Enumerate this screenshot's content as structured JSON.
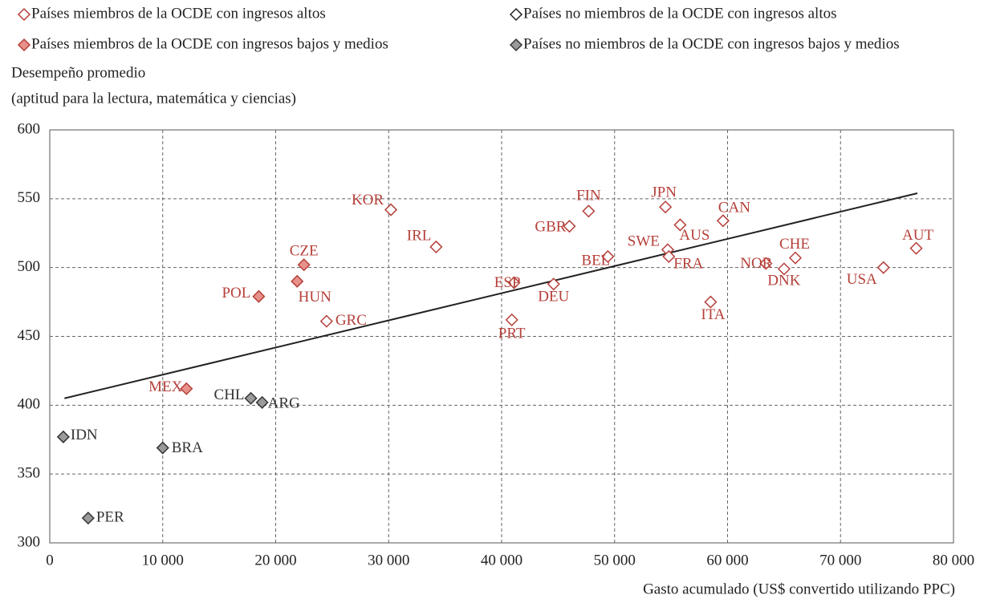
{
  "chart_data": {
    "type": "scatter",
    "y_axis_title": [
      "Desempeño promedio",
      "(aptitud para la lectura, matemática y ciencias)"
    ],
    "x_axis_title": "Gasto acumulado (US$ convertido utilizando PPC)",
    "xlim": [
      0,
      80000
    ],
    "xticks": [
      0,
      {
        "value": 10000,
        "label": "10 000"
      },
      {
        "value": 20000,
        "label": "20 000"
      },
      {
        "value": 30000,
        "label": "30 000"
      },
      {
        "value": 40000,
        "label": "40 000"
      },
      {
        "value": 50000,
        "label": "50 000"
      },
      {
        "value": 60000,
        "label": "60 000"
      },
      {
        "value": 70000,
        "label": "70 000"
      },
      {
        "value": 80000,
        "label": "80 000"
      }
    ],
    "ylim": [
      300,
      600
    ],
    "yticks": [
      300,
      350,
      400,
      450,
      500,
      550,
      600
    ],
    "grid": true,
    "series": [
      {
        "name": "Países miembros de la OCDE con ingresos altos",
        "color": "#b5403a",
        "marker": "hollow",
        "labels": [
          "KOR",
          "IRL",
          "FIN",
          "GBR",
          "JPN",
          "AUS",
          "CAN",
          "SWE",
          "FRA",
          "BEL",
          "ESP",
          "DEU",
          "PRT",
          "ITA",
          "NOR",
          "DNK",
          "CHE",
          "USA",
          "AUT",
          "GRC"
        ],
        "x": [
          30200,
          34200,
          47700,
          46000,
          54500,
          55800,
          59600,
          54700,
          54800,
          49400,
          41100,
          44600,
          40900,
          58500,
          63400,
          65000,
          66000,
          73800,
          76700,
          24500
        ],
        "values": [
          542,
          515,
          541,
          530,
          544,
          531,
          534,
          513,
          508,
          508,
          489,
          488,
          462,
          475,
          503,
          499,
          507,
          500,
          514,
          461
        ]
      },
      {
        "name": "Países miembros de la OCDE con ingresos bajos y medios",
        "color": "#b5403a",
        "fill": "#e8918a",
        "marker": "filled",
        "labels": [
          "CZE",
          "HUN",
          "POL",
          "MEX"
        ],
        "x": [
          22500,
          21900,
          18500,
          12100
        ],
        "values": [
          502,
          490,
          479,
          412
        ]
      },
      {
        "name": "Países no miembros de la OCDE con ingresos altos",
        "color": "#222222",
        "marker": "hollow",
        "labels": [],
        "x": [],
        "values": []
      },
      {
        "name": "Países no miembros de la OCDE con ingresos bajos y medios",
        "color": "#333333",
        "fill": "#9a9a9a",
        "marker": "filled",
        "labels": [
          "CHL",
          "ARG",
          "IDN",
          "BRA",
          "PER"
        ],
        "x": [
          17800,
          18800,
          1200,
          10000,
          3400
        ],
        "values": [
          405,
          402,
          377,
          369,
          318
        ]
      }
    ],
    "trendline": {
      "color": "#222222",
      "x": [
        1300,
        76800
      ],
      "y": [
        405,
        554
      ]
    }
  }
}
